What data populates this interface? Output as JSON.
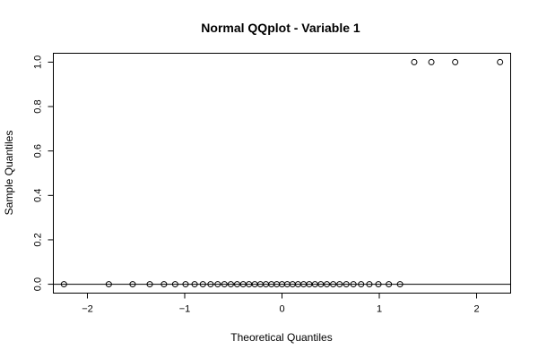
{
  "chart_data": {
    "type": "scatter",
    "title": "Normal QQplot - Variable 1",
    "xlabel": "Theoretical Quantiles",
    "ylabel": "Sample Quantiles",
    "xlim": [
      -2.35,
      2.35
    ],
    "ylim": [
      -0.04,
      1.04
    ],
    "x_ticks": [
      -2,
      -1,
      0,
      1,
      2
    ],
    "x_tick_labels": [
      "−2",
      "−1",
      "0",
      "1",
      "2"
    ],
    "y_ticks": [
      0.0,
      0.2,
      0.4,
      0.6,
      0.8,
      1.0
    ],
    "y_tick_labels": [
      "0.0",
      "0.2",
      "0.4",
      "0.6",
      "0.8",
      "1.0"
    ],
    "reference_line_y": 0,
    "grid": false,
    "x": [
      -2.241,
      -1.78,
      -1.535,
      -1.359,
      -1.213,
      -1.098,
      -0.991,
      -0.898,
      -0.813,
      -0.734,
      -0.661,
      -0.592,
      -0.526,
      -0.461,
      -0.399,
      -0.339,
      -0.28,
      -0.222,
      -0.165,
      -0.109,
      -0.054,
      0.0,
      0.054,
      0.109,
      0.165,
      0.222,
      0.28,
      0.339,
      0.399,
      0.461,
      0.526,
      0.592,
      0.661,
      0.734,
      0.813,
      0.898,
      0.991,
      1.098,
      1.213,
      1.359,
      1.535,
      1.78,
      2.241
    ],
    "y": [
      0,
      0,
      0,
      0,
      0,
      0,
      0,
      0,
      0,
      0,
      0,
      0,
      0,
      0,
      0,
      0,
      0,
      0,
      0,
      0,
      0,
      0,
      0,
      0,
      0,
      0,
      0,
      0,
      0,
      0,
      0,
      0,
      0,
      0,
      0,
      0,
      0,
      0,
      0,
      1,
      1,
      1,
      1
    ]
  }
}
